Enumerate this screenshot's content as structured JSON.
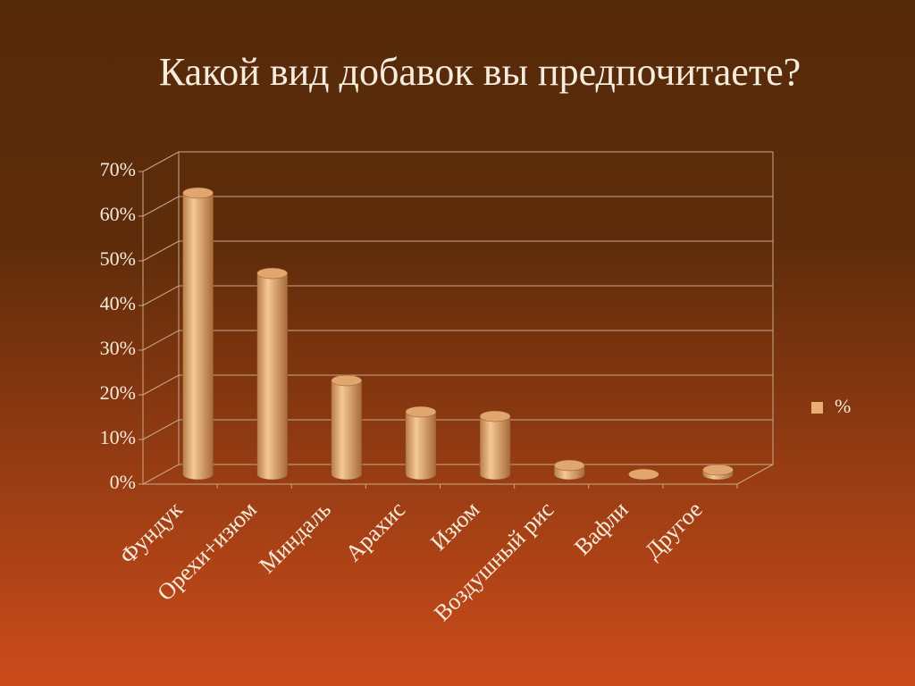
{
  "chart_data": {
    "type": "bar",
    "title": "Какой вид добавок вы предпочитаете?",
    "categories": [
      "Фундук",
      "Орехи+изюм",
      "Миндаль",
      "Арахис",
      "Изюм",
      "Воздушный рис",
      "Вафли",
      "Другое"
    ],
    "series": [
      {
        "name": "%",
        "color": "#e8ae74",
        "values": [
          63,
          45,
          21,
          14,
          13,
          2,
          0,
          1
        ]
      }
    ],
    "ylim": [
      0,
      70
    ],
    "yticks": [
      {
        "value": 0,
        "label": "0%"
      },
      {
        "value": 10,
        "label": "10%"
      },
      {
        "value": 20,
        "label": "20%"
      },
      {
        "value": 30,
        "label": "30%"
      },
      {
        "value": 40,
        "label": "40%"
      },
      {
        "value": 50,
        "label": "50%"
      },
      {
        "value": 60,
        "label": "60%"
      },
      {
        "value": 70,
        "label": "70%"
      }
    ],
    "grid": true,
    "legend": "right"
  }
}
